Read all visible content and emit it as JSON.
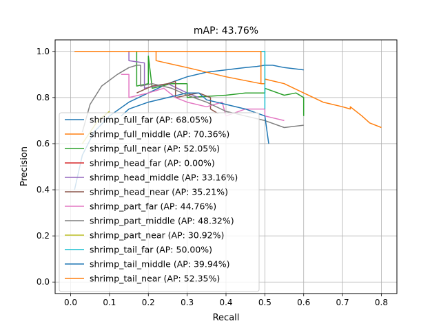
{
  "chart_data": {
    "type": "line",
    "title": "mAP: 43.76%",
    "xlabel": "Recall",
    "ylabel": "Precision",
    "xlim": [
      -0.04,
      0.84
    ],
    "ylim": [
      -0.05,
      1.05
    ],
    "xticks": [
      0.0,
      0.1,
      0.2,
      0.3,
      0.4,
      0.5,
      0.6,
      0.7,
      0.8
    ],
    "xtick_labels": [
      "0.0",
      "0.1",
      "0.2",
      "0.3",
      "0.4",
      "0.5",
      "0.6",
      "0.7",
      "0.8"
    ],
    "yticks": [
      0.0,
      0.2,
      0.4,
      0.6,
      0.8,
      1.0
    ],
    "ytick_labels": [
      "0.0",
      "0.2",
      "0.4",
      "0.6",
      "0.8",
      "1.0"
    ],
    "grid": true,
    "legend_position": "lower-left",
    "series": [
      {
        "name": "shrimp_full_far (AP: 68.05%)",
        "color": "#1f77b4",
        "points": [
          [
            0.01,
            0.4
          ],
          [
            0.03,
            0.55
          ],
          [
            0.06,
            0.65
          ],
          [
            0.1,
            0.72
          ],
          [
            0.15,
            0.78
          ],
          [
            0.2,
            0.82
          ],
          [
            0.25,
            0.86
          ],
          [
            0.3,
            0.89
          ],
          [
            0.35,
            0.91
          ],
          [
            0.4,
            0.92
          ],
          [
            0.45,
            0.93
          ],
          [
            0.48,
            0.935
          ],
          [
            0.5,
            0.94
          ],
          [
            0.52,
            0.94
          ],
          [
            0.55,
            0.93
          ],
          [
            0.6,
            0.92
          ]
        ]
      },
      {
        "name": "shrimp_full_middle (AP: 70.36%)",
        "color": "#ff7f0e",
        "points": [
          [
            0.01,
            1.0
          ],
          [
            0.2,
            1.0
          ],
          [
            0.22,
            1.0
          ],
          [
            0.22,
            0.96
          ],
          [
            0.3,
            0.93
          ],
          [
            0.4,
            0.89
          ],
          [
            0.49,
            0.86
          ],
          [
            0.5,
            0.86
          ],
          [
            0.5,
            0.88
          ],
          [
            0.55,
            0.86
          ],
          [
            0.6,
            0.82
          ],
          [
            0.65,
            0.78
          ],
          [
            0.7,
            0.76
          ],
          [
            0.72,
            0.75
          ],
          [
            0.72,
            0.76
          ],
          [
            0.75,
            0.72
          ],
          [
            0.77,
            0.69
          ],
          [
            0.8,
            0.67
          ]
        ]
      },
      {
        "name": "shrimp_full_near (AP: 52.05%)",
        "color": "#2ca02c",
        "points": [
          [
            0.17,
            1.0
          ],
          [
            0.17,
            0.85
          ],
          [
            0.2,
            0.86
          ],
          [
            0.2,
            0.98
          ],
          [
            0.21,
            0.84
          ],
          [
            0.26,
            0.86
          ],
          [
            0.3,
            0.86
          ],
          [
            0.3,
            0.8
          ],
          [
            0.4,
            0.81
          ],
          [
            0.45,
            0.82
          ],
          [
            0.5,
            0.82
          ],
          [
            0.5,
            0.84
          ],
          [
            0.55,
            0.81
          ],
          [
            0.58,
            0.82
          ],
          [
            0.6,
            0.8
          ],
          [
            0.6,
            0.72
          ]
        ]
      },
      {
        "name": "shrimp_head_far (AP: 0.00%)",
        "color": "#d62728",
        "points": []
      },
      {
        "name": "shrimp_head_middle (AP: 33.16%)",
        "color": "#9467bd",
        "points": [
          [
            0.01,
            1.0
          ],
          [
            0.15,
            1.0
          ],
          [
            0.15,
            0.96
          ],
          [
            0.19,
            0.95
          ],
          [
            0.19,
            0.84
          ],
          [
            0.25,
            0.86
          ],
          [
            0.3,
            0.82
          ],
          [
            0.33,
            0.8
          ]
        ]
      },
      {
        "name": "shrimp_head_near (AP: 35.21%)",
        "color": "#8c564b",
        "points": [
          [
            0.17,
            0.82
          ],
          [
            0.21,
            0.85
          ],
          [
            0.25,
            0.86
          ],
          [
            0.27,
            0.87
          ],
          [
            0.27,
            0.8
          ],
          [
            0.33,
            0.82
          ],
          [
            0.36,
            0.8
          ],
          [
            0.36,
            0.75
          ],
          [
            0.38,
            0.73
          ]
        ]
      },
      {
        "name": "shrimp_part_far (AP: 44.76%)",
        "color": "#e377c2",
        "points": [
          [
            0.13,
            0.9
          ],
          [
            0.15,
            0.9
          ],
          [
            0.15,
            0.8
          ],
          [
            0.2,
            0.82
          ],
          [
            0.24,
            0.84
          ],
          [
            0.27,
            0.8
          ],
          [
            0.3,
            0.78
          ],
          [
            0.35,
            0.76
          ],
          [
            0.39,
            0.78
          ],
          [
            0.4,
            0.72
          ],
          [
            0.45,
            0.75
          ],
          [
            0.5,
            0.75
          ],
          [
            0.5,
            0.72
          ],
          [
            0.55,
            0.7
          ]
        ]
      },
      {
        "name": "shrimp_part_middle (AP: 48.32%)",
        "color": "#7f7f7f",
        "points": [
          [
            0.03,
            0.65
          ],
          [
            0.05,
            0.77
          ],
          [
            0.08,
            0.85
          ],
          [
            0.12,
            0.9
          ],
          [
            0.15,
            0.93
          ],
          [
            0.17,
            0.94
          ],
          [
            0.18,
            0.94
          ],
          [
            0.18,
            0.85
          ],
          [
            0.21,
            0.86
          ],
          [
            0.26,
            0.84
          ],
          [
            0.3,
            0.81
          ],
          [
            0.35,
            0.78
          ],
          [
            0.4,
            0.74
          ],
          [
            0.45,
            0.72
          ],
          [
            0.5,
            0.7
          ],
          [
            0.55,
            0.67
          ],
          [
            0.6,
            0.68
          ]
        ]
      },
      {
        "name": "shrimp_part_near (AP: 30.92%)",
        "color": "#bcbd22",
        "points": [
          [
            0.03,
            0.6
          ],
          [
            0.07,
            0.7
          ],
          [
            0.1,
            0.74
          ]
        ]
      },
      {
        "name": "shrimp_tail_far (AP: 50.00%)",
        "color": "#17becf",
        "points": [
          [
            0.01,
            1.0
          ],
          [
            0.49,
            1.0
          ],
          [
            0.5,
            1.0
          ],
          [
            0.5,
            0.75
          ]
        ]
      },
      {
        "name": "shrimp_tail_middle (AP: 39.94%)",
        "color": "#1f77b4",
        "points": [
          [
            0.13,
            0.72
          ],
          [
            0.15,
            0.75
          ],
          [
            0.2,
            0.78
          ],
          [
            0.25,
            0.8
          ],
          [
            0.3,
            0.82
          ],
          [
            0.33,
            0.82
          ],
          [
            0.35,
            0.79
          ],
          [
            0.4,
            0.77
          ],
          [
            0.45,
            0.75
          ],
          [
            0.5,
            0.72
          ],
          [
            0.51,
            0.6
          ]
        ]
      },
      {
        "name": "shrimp_tail_near (AP: 52.35%)",
        "color": "#ff7f0e",
        "points": [
          [
            0.01,
            1.0
          ],
          [
            0.2,
            1.0
          ],
          [
            0.22,
            1.0
          ],
          [
            0.4,
            1.0
          ],
          [
            0.49,
            1.0
          ],
          [
            0.49,
            0.86
          ]
        ]
      }
    ]
  }
}
